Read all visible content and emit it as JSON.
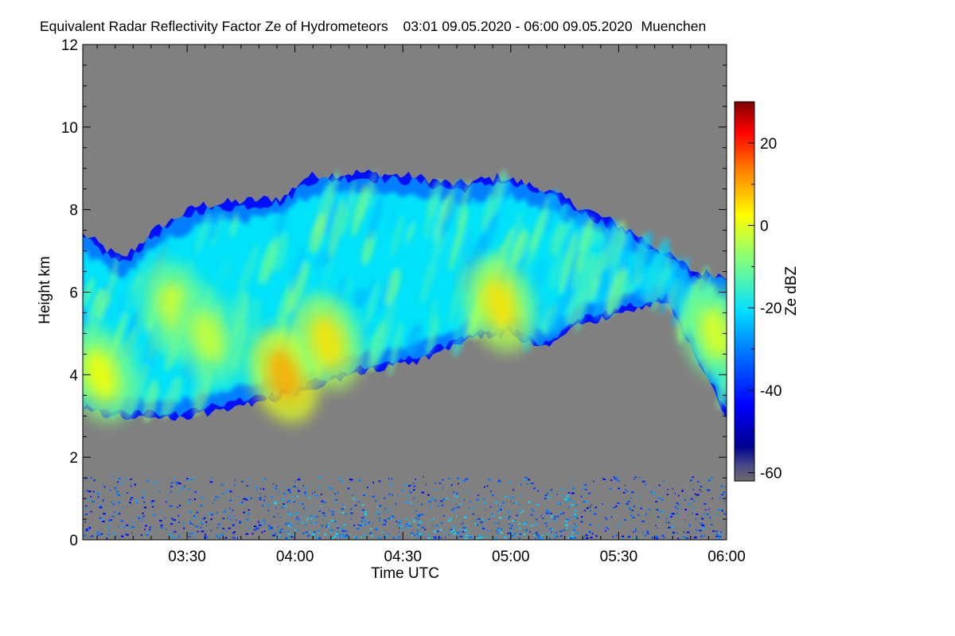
{
  "chart_data": {
    "type": "heatmap",
    "title": "Equivalent Radar Reflectivity Factor Ze of Hydrometeors",
    "time_range": "03:01 09.05.2020 - 06:00 09.05.2020",
    "location": "Muenchen",
    "xlabel": "Time UTC",
    "ylabel": "Height km",
    "x_ticks": [
      "03:30",
      "04:00",
      "04:30",
      "05:00",
      "05:30",
      "06:00"
    ],
    "x_tick_hours": [
      3.5,
      4.0,
      4.5,
      5.0,
      5.5,
      6.0
    ],
    "xlim_hours": [
      3.0167,
      6.0
    ],
    "y_ticks": [
      "0",
      "2",
      "4",
      "6",
      "8",
      "10",
      "12"
    ],
    "y_tick_values": [
      0,
      2,
      4,
      6,
      8,
      10,
      12
    ],
    "ylim": [
      0,
      12
    ],
    "colorbar": {
      "label": "Ze dBZ",
      "ticks": [
        "20",
        "0",
        "-20",
        "-40",
        "-60"
      ],
      "tick_values": [
        20,
        0,
        -20,
        -40,
        -60
      ],
      "range": [
        -62,
        30
      ],
      "colormap": "jet"
    },
    "no_signal_color": "#808080",
    "cloud_base_km": [
      {
        "t": 3.02,
        "h": 3.1
      },
      {
        "t": 3.2,
        "h": 3.0
      },
      {
        "t": 3.45,
        "h": 2.9
      },
      {
        "t": 3.7,
        "h": 3.2
      },
      {
        "t": 3.9,
        "h": 3.4
      },
      {
        "t": 4.15,
        "h": 3.8
      },
      {
        "t": 4.35,
        "h": 4.1
      },
      {
        "t": 4.55,
        "h": 4.3
      },
      {
        "t": 4.7,
        "h": 4.6
      },
      {
        "t": 4.85,
        "h": 4.9
      },
      {
        "t": 5.0,
        "h": 5.0
      },
      {
        "t": 5.15,
        "h": 4.6
      },
      {
        "t": 5.3,
        "h": 5.2
      },
      {
        "t": 5.45,
        "h": 5.4
      },
      {
        "t": 5.6,
        "h": 5.6
      },
      {
        "t": 5.72,
        "h": 5.8
      },
      {
        "t": 5.85,
        "h": 4.5
      },
      {
        "t": 6.0,
        "h": 3.0
      }
    ],
    "cloud_top_km": [
      {
        "t": 3.02,
        "h": 7.4
      },
      {
        "t": 3.2,
        "h": 6.8
      },
      {
        "t": 3.35,
        "h": 7.5
      },
      {
        "t": 3.55,
        "h": 8.1
      },
      {
        "t": 3.75,
        "h": 8.2
      },
      {
        "t": 3.95,
        "h": 8.3
      },
      {
        "t": 4.05,
        "h": 8.8
      },
      {
        "t": 4.3,
        "h": 8.9
      },
      {
        "t": 4.55,
        "h": 8.8
      },
      {
        "t": 4.75,
        "h": 8.6
      },
      {
        "t": 4.95,
        "h": 8.8
      },
      {
        "t": 5.15,
        "h": 8.5
      },
      {
        "t": 5.35,
        "h": 8.0
      },
      {
        "t": 5.55,
        "h": 7.5
      },
      {
        "t": 5.7,
        "h": 7.0
      },
      {
        "t": 5.85,
        "h": 6.5
      },
      {
        "t": 6.0,
        "h": 6.4
      }
    ],
    "reflectivity_maxima": [
      {
        "t": 3.1,
        "h": 4.0,
        "dbz": 2
      },
      {
        "t": 3.45,
        "h": 5.6,
        "dbz": 0
      },
      {
        "t": 3.6,
        "h": 4.9,
        "dbz": -2
      },
      {
        "t": 3.95,
        "h": 4.0,
        "dbz": 10
      },
      {
        "t": 4.15,
        "h": 4.8,
        "dbz": 5
      },
      {
        "t": 4.95,
        "h": 5.7,
        "dbz": 5
      },
      {
        "t": 5.95,
        "h": 5.0,
        "dbz": 0
      }
    ],
    "near_surface_clutter_km": [
      0,
      1.5
    ],
    "near_surface_clutter_dbz": [
      -45,
      -25
    ]
  }
}
